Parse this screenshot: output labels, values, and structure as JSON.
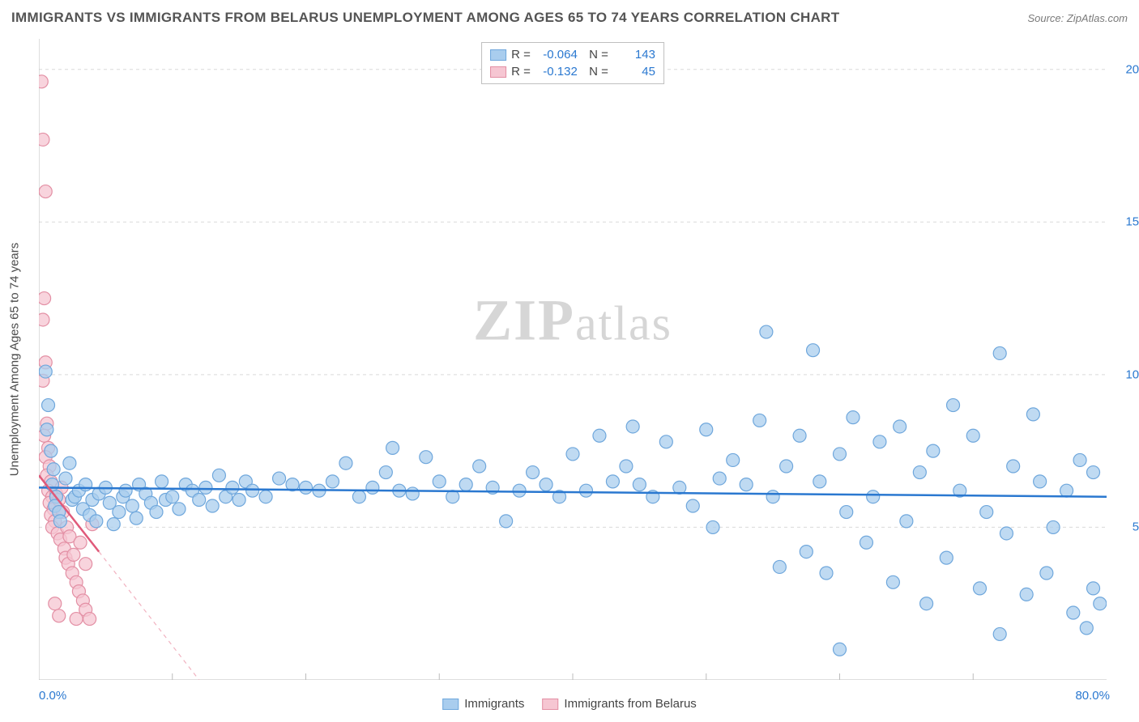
{
  "title": "IMMIGRANTS VS IMMIGRANTS FROM BELARUS UNEMPLOYMENT AMONG AGES 65 TO 74 YEARS CORRELATION CHART",
  "source": "Source: ZipAtlas.com",
  "watermark": "ZIPatlas",
  "ylabel": "Unemployment Among Ages 65 to 74 years",
  "chart": {
    "type": "scatter",
    "background_color": "#ffffff",
    "grid_color": "#d9d9d9",
    "axis_color": "#bcbcbc",
    "tick_color": "#bcbcbc",
    "xlim": [
      0,
      80
    ],
    "ylim": [
      0,
      21
    ],
    "x_ticks_major": [
      0,
      80
    ],
    "x_ticks_minor_step": 10,
    "y_gridlines": [
      5,
      10,
      15,
      20
    ],
    "y_tick_labels": [
      "5.0%",
      "10.0%",
      "15.0%",
      "20.0%"
    ],
    "x_tick_labels": {
      "low": "0.0%",
      "high": "80.0%"
    },
    "axis_label_color": "#2a78d0",
    "series": [
      {
        "name": "Immigrants",
        "marker_color_fill": "#a9cdee",
        "marker_color_stroke": "#6fa7dc",
        "marker_opacity": 0.75,
        "marker_radius": 8,
        "trend_color": "#2a78d0",
        "trend_width": 2.5,
        "trend_dashed_color": "#2a78d0",
        "trend": {
          "y_at_x0": 6.3,
          "y_at_xmax": 6.0
        },
        "stats": {
          "R": "-0.064",
          "N": "143"
        },
        "points": [
          [
            0.5,
            10.1
          ],
          [
            0.7,
            9.0
          ],
          [
            0.6,
            8.2
          ],
          [
            0.9,
            7.5
          ],
          [
            1.1,
            6.9
          ],
          [
            1.0,
            6.4
          ],
          [
            1.3,
            6.0
          ],
          [
            1.2,
            5.7
          ],
          [
            1.5,
            5.5
          ],
          [
            1.6,
            5.2
          ],
          [
            2.0,
            6.6
          ],
          [
            2.3,
            7.1
          ],
          [
            2.5,
            5.9
          ],
          [
            2.7,
            6.0
          ],
          [
            3.0,
            6.2
          ],
          [
            3.3,
            5.6
          ],
          [
            3.5,
            6.4
          ],
          [
            3.8,
            5.4
          ],
          [
            4.0,
            5.9
          ],
          [
            4.3,
            5.2
          ],
          [
            4.5,
            6.1
          ],
          [
            5.0,
            6.3
          ],
          [
            5.3,
            5.8
          ],
          [
            5.6,
            5.1
          ],
          [
            6.0,
            5.5
          ],
          [
            6.3,
            6.0
          ],
          [
            6.5,
            6.2
          ],
          [
            7.0,
            5.7
          ],
          [
            7.3,
            5.3
          ],
          [
            7.5,
            6.4
          ],
          [
            8.0,
            6.1
          ],
          [
            8.4,
            5.8
          ],
          [
            8.8,
            5.5
          ],
          [
            9.2,
            6.5
          ],
          [
            9.5,
            5.9
          ],
          [
            10.0,
            6.0
          ],
          [
            10.5,
            5.6
          ],
          [
            11.0,
            6.4
          ],
          [
            11.5,
            6.2
          ],
          [
            12.0,
            5.9
          ],
          [
            12.5,
            6.3
          ],
          [
            13.0,
            5.7
          ],
          [
            13.5,
            6.7
          ],
          [
            14.0,
            6.0
          ],
          [
            14.5,
            6.3
          ],
          [
            15.0,
            5.9
          ],
          [
            15.5,
            6.5
          ],
          [
            16.0,
            6.2
          ],
          [
            17.0,
            6.0
          ],
          [
            18.0,
            6.6
          ],
          [
            19.0,
            6.4
          ],
          [
            20.0,
            6.3
          ],
          [
            21.0,
            6.2
          ],
          [
            22.0,
            6.5
          ],
          [
            23.0,
            7.1
          ],
          [
            24.0,
            6.0
          ],
          [
            25.0,
            6.3
          ],
          [
            26.0,
            6.8
          ],
          [
            26.5,
            7.6
          ],
          [
            27.0,
            6.2
          ],
          [
            28.0,
            6.1
          ],
          [
            29.0,
            7.3
          ],
          [
            30.0,
            6.5
          ],
          [
            31.0,
            6.0
          ],
          [
            32.0,
            6.4
          ],
          [
            33.0,
            7.0
          ],
          [
            34.0,
            6.3
          ],
          [
            35.0,
            5.2
          ],
          [
            36.0,
            6.2
          ],
          [
            37.0,
            6.8
          ],
          [
            38.0,
            6.4
          ],
          [
            39.0,
            6.0
          ],
          [
            40.0,
            7.4
          ],
          [
            41.0,
            6.2
          ],
          [
            42.0,
            8.0
          ],
          [
            43.0,
            6.5
          ],
          [
            44.0,
            7.0
          ],
          [
            44.5,
            8.3
          ],
          [
            45.0,
            6.4
          ],
          [
            46.0,
            6.0
          ],
          [
            47.0,
            7.8
          ],
          [
            48.0,
            6.3
          ],
          [
            49.0,
            5.7
          ],
          [
            50.0,
            8.2
          ],
          [
            50.5,
            5.0
          ],
          [
            51.0,
            6.6
          ],
          [
            52.0,
            7.2
          ],
          [
            53.0,
            6.4
          ],
          [
            54.0,
            8.5
          ],
          [
            54.5,
            11.4
          ],
          [
            55.0,
            6.0
          ],
          [
            55.5,
            3.7
          ],
          [
            56.0,
            7.0
          ],
          [
            57.0,
            8.0
          ],
          [
            57.5,
            4.2
          ],
          [
            58.0,
            10.8
          ],
          [
            58.5,
            6.5
          ],
          [
            59.0,
            3.5
          ],
          [
            60.0,
            7.4
          ],
          [
            60.5,
            5.5
          ],
          [
            61.0,
            8.6
          ],
          [
            62.0,
            4.5
          ],
          [
            62.5,
            6.0
          ],
          [
            63.0,
            7.8
          ],
          [
            64.0,
            3.2
          ],
          [
            64.5,
            8.3
          ],
          [
            65.0,
            5.2
          ],
          [
            66.0,
            6.8
          ],
          [
            66.5,
            2.5
          ],
          [
            67.0,
            7.5
          ],
          [
            68.0,
            4.0
          ],
          [
            68.5,
            9.0
          ],
          [
            69.0,
            6.2
          ],
          [
            70.0,
            8.0
          ],
          [
            70.5,
            3.0
          ],
          [
            71.0,
            5.5
          ],
          [
            72.0,
            10.7
          ],
          [
            72.5,
            4.8
          ],
          [
            73.0,
            7.0
          ],
          [
            74.0,
            2.8
          ],
          [
            74.5,
            8.7
          ],
          [
            75.0,
            6.5
          ],
          [
            75.5,
            3.5
          ],
          [
            76.0,
            5.0
          ],
          [
            77.0,
            6.2
          ],
          [
            77.5,
            2.2
          ],
          [
            78.0,
            7.2
          ],
          [
            78.5,
            1.7
          ],
          [
            79.0,
            3.0
          ],
          [
            79.5,
            2.5
          ],
          [
            60.0,
            1.0
          ],
          [
            72.0,
            1.5
          ],
          [
            79.0,
            6.8
          ]
        ]
      },
      {
        "name": "Immigrants from Belarus",
        "marker_color_fill": "#f6c6d2",
        "marker_color_stroke": "#e38fa4",
        "marker_opacity": 0.75,
        "marker_radius": 8,
        "trend_color": "#e05a7a",
        "trend_width": 2.5,
        "trend_dashed_color": "#f1b2c0",
        "trend": {
          "y_at_x0": 6.7,
          "y_at_xmax": 4.2,
          "solid_xmax": 4.5,
          "dashed_to": {
            "x": 12,
            "y": 0
          }
        },
        "stats": {
          "R": "-0.132",
          "N": "45"
        },
        "points": [
          [
            0.2,
            19.6
          ],
          [
            0.3,
            17.7
          ],
          [
            0.5,
            16.0
          ],
          [
            0.4,
            12.5
          ],
          [
            0.3,
            11.8
          ],
          [
            0.5,
            10.4
          ],
          [
            0.3,
            9.8
          ],
          [
            0.6,
            8.4
          ],
          [
            0.4,
            8.0
          ],
          [
            0.7,
            7.6
          ],
          [
            0.5,
            7.3
          ],
          [
            0.8,
            7.0
          ],
          [
            0.6,
            6.7
          ],
          [
            0.9,
            6.5
          ],
          [
            0.7,
            6.2
          ],
          [
            1.0,
            6.0
          ],
          [
            0.8,
            5.8
          ],
          [
            1.1,
            5.6
          ],
          [
            0.9,
            5.4
          ],
          [
            1.2,
            5.2
          ],
          [
            1.0,
            5.0
          ],
          [
            1.3,
            6.1
          ],
          [
            1.5,
            5.9
          ],
          [
            1.4,
            4.8
          ],
          [
            1.6,
            4.6
          ],
          [
            1.7,
            6.3
          ],
          [
            1.8,
            5.5
          ],
          [
            1.9,
            4.3
          ],
          [
            2.0,
            4.0
          ],
          [
            2.1,
            5.0
          ],
          [
            2.2,
            3.8
          ],
          [
            2.3,
            4.7
          ],
          [
            2.5,
            3.5
          ],
          [
            2.6,
            4.1
          ],
          [
            2.8,
            3.2
          ],
          [
            3.0,
            2.9
          ],
          [
            3.1,
            4.5
          ],
          [
            3.3,
            2.6
          ],
          [
            3.5,
            2.3
          ],
          [
            3.8,
            2.0
          ],
          [
            4.0,
            5.1
          ],
          [
            1.2,
            2.5
          ],
          [
            1.5,
            2.1
          ],
          [
            2.8,
            2.0
          ],
          [
            3.5,
            3.8
          ]
        ]
      }
    ],
    "legend_bottom": [
      {
        "label": "Immigrants",
        "fill": "#a9cdee",
        "stroke": "#6fa7dc"
      },
      {
        "label": "Immigrants from Belarus",
        "fill": "#f6c6d2",
        "stroke": "#e38fa4"
      }
    ]
  }
}
